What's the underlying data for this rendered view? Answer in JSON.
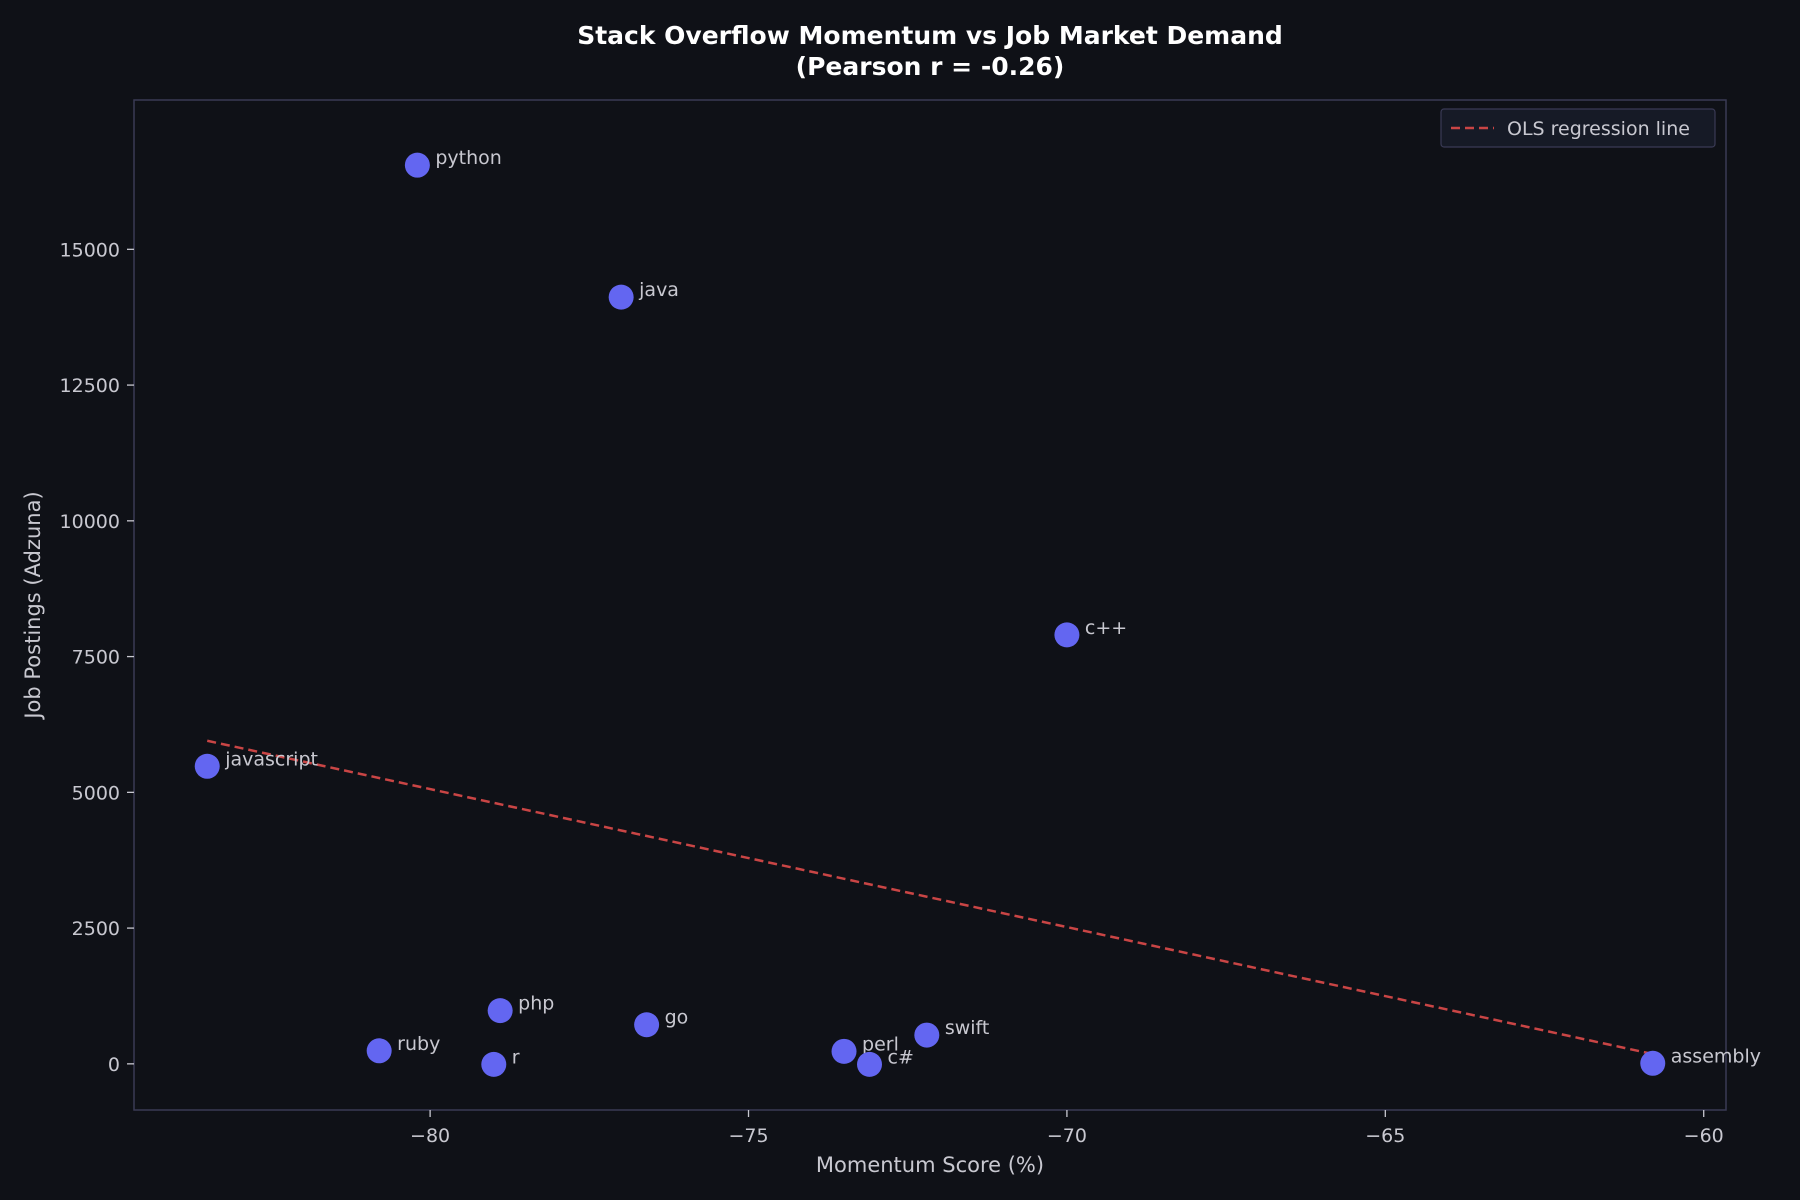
{
  "chart_data": {
    "type": "scatter",
    "title_line1": "Stack Overflow Momentum vs Job Market Demand",
    "title_line2": "(Pearson r = -0.26)",
    "xlabel": "Momentum Score (%)",
    "ylabel": "Job Postings (Adzuna)",
    "xlim": [
      -84.65,
      -59.65
    ],
    "ylim": [
      -850,
      17750
    ],
    "xticks": [
      -80,
      -75,
      -70,
      -65,
      -60
    ],
    "xtick_labels": [
      "−80",
      "−75",
      "−70",
      "−65",
      "−60"
    ],
    "yticks": [
      0,
      2500,
      5000,
      7500,
      10000,
      12500,
      15000
    ],
    "ytick_labels": [
      "0",
      "2500",
      "5000",
      "7500",
      "10000",
      "12500",
      "15000"
    ],
    "grid": false,
    "legend_position": "top-right",
    "legend_label": "OLS regression line",
    "points": [
      {
        "label": "python",
        "x": -80.2,
        "y": 16550
      },
      {
        "label": "java",
        "x": -77.0,
        "y": 14120
      },
      {
        "label": "c++",
        "x": -70.0,
        "y": 7900
      },
      {
        "label": "javascript",
        "x": -83.5,
        "y": 5480
      },
      {
        "label": "php",
        "x": -78.9,
        "y": 980
      },
      {
        "label": "go",
        "x": -76.6,
        "y": 720
      },
      {
        "label": "swift",
        "x": -72.2,
        "y": 530
      },
      {
        "label": "ruby",
        "x": -80.8,
        "y": 240
      },
      {
        "label": "perl",
        "x": -73.5,
        "y": 230
      },
      {
        "label": "r",
        "x": -79.0,
        "y": -10
      },
      {
        "label": "c#",
        "x": -73.1,
        "y": -10
      },
      {
        "label": "assembly",
        "x": -60.8,
        "y": 10
      }
    ],
    "regression_line": {
      "x": [
        -83.5,
        -60.8
      ],
      "y": [
        5950,
        180
      ]
    }
  },
  "colors": {
    "background": "#0f1117",
    "plot_border": "#3a3a55",
    "point": "#6366f1",
    "regression": "#c94545",
    "text": "#c8c8d0",
    "title": "#ffffff",
    "legend_bg": "#161a26"
  }
}
